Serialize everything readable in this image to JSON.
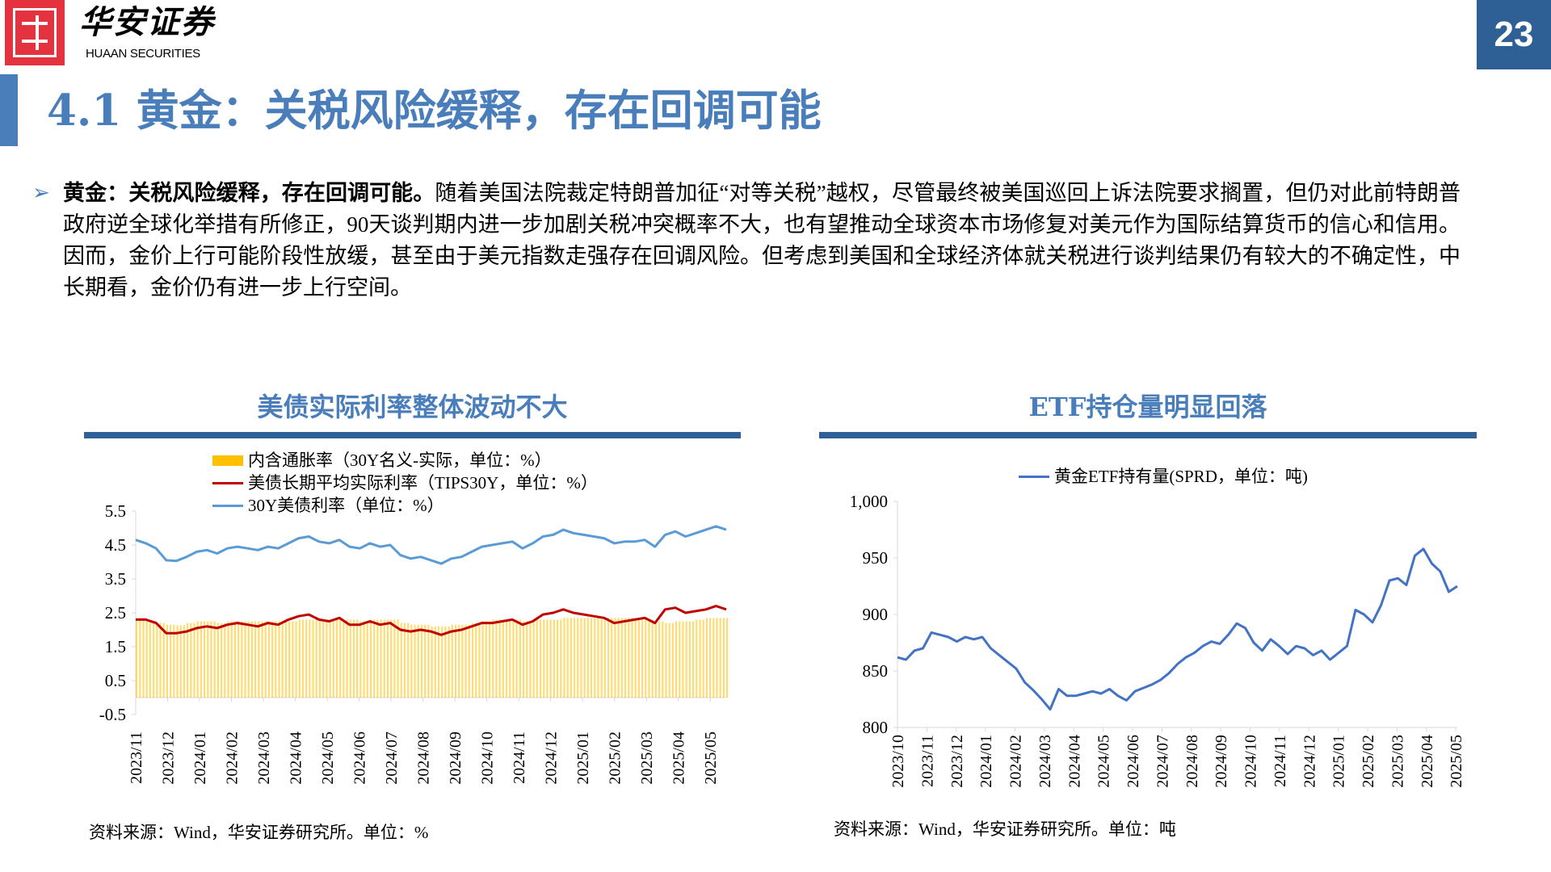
{
  "header": {
    "logo_cn": "华安证券",
    "logo_en": "HUAAN SECURITIES",
    "page_number": "23"
  },
  "title": "4.1 黄金：关税风险缓释，存在回调可能",
  "body": {
    "lead": "黄金：关税风险缓释，存在回调可能。",
    "text": "随着美国法院裁定特朗普加征“对等关税”越权，尽管最终被美国巡回上诉法院要求搁置，但仍对此前特朗普政府逆全球化举措有所修正，90天谈判期内进一步加剧关税冲突概率不大，也有望推动全球资本市场修复对美元作为国际结算货币的信心和信用。因而，金价上行可能阶段性放缓，甚至由于美元指数走强存在回调风险。但考虑到美国和全球经济体就关税进行谈判结果仍有较大的不确定性，中长期看，金价仍有进一步上行空间。"
  },
  "colors": {
    "accent": "#4a7ebb",
    "bar": "#2f6098",
    "breakeven": "#ffc000",
    "tips": "#c00000",
    "yield": "#5b9bd5",
    "etf": "#4472c4"
  },
  "chart_data": [
    {
      "type": "line",
      "title": "美债实际利率整体波动不大",
      "source": "资料来源：Wind，华安证券研究所。单位：%",
      "ylim": [
        -0.5,
        5.5
      ],
      "yticks": [
        "5.5",
        "4.5",
        "3.5",
        "2.5",
        "1.5",
        "0.5",
        "-0.5"
      ],
      "ytick_values": [
        5.5,
        4.5,
        3.5,
        2.5,
        1.5,
        0.5,
        -0.5
      ],
      "xticks": [
        "2023/11",
        "2023/12",
        "2024/01",
        "2024/02",
        "2024/03",
        "2024/04",
        "2024/05",
        "2024/06",
        "2024/07",
        "2024/08",
        "2024/09",
        "2024/10",
        "2024/11",
        "2024/12",
        "2025/01",
        "2025/02",
        "2025/03",
        "2025/04",
        "2025/05"
      ],
      "series": [
        {
          "name": "内含通胀率（30Y名义-实际，单位：%）",
          "kind": "bar",
          "values": [
            2.35,
            2.25,
            2.2,
            2.15,
            2.13,
            2.2,
            2.25,
            2.25,
            2.2,
            2.25,
            2.25,
            2.25,
            2.25,
            2.25,
            2.25,
            2.25,
            2.3,
            2.3,
            2.3,
            2.3,
            2.3,
            2.3,
            2.25,
            2.3,
            2.3,
            2.3,
            2.2,
            2.15,
            2.15,
            2.1,
            2.1,
            2.15,
            2.15,
            2.2,
            2.25,
            2.3,
            2.3,
            2.3,
            2.25,
            2.3,
            2.3,
            2.3,
            2.35,
            2.35,
            2.35,
            2.35,
            2.35,
            2.35,
            2.35,
            2.3,
            2.3,
            2.25,
            2.2,
            2.25,
            2.25,
            2.3,
            2.35,
            2.35,
            2.35
          ]
        },
        {
          "name": "美债长期平均实际利率（TIPS30Y，单位：%）",
          "kind": "line",
          "values": [
            2.3,
            2.3,
            2.2,
            1.9,
            1.9,
            1.95,
            2.05,
            2.1,
            2.05,
            2.15,
            2.2,
            2.15,
            2.1,
            2.2,
            2.15,
            2.3,
            2.4,
            2.45,
            2.3,
            2.25,
            2.35,
            2.15,
            2.15,
            2.25,
            2.15,
            2.2,
            2.0,
            1.95,
            2.0,
            1.95,
            1.85,
            1.95,
            2.0,
            2.1,
            2.2,
            2.2,
            2.25,
            2.3,
            2.15,
            2.25,
            2.45,
            2.5,
            2.6,
            2.5,
            2.45,
            2.4,
            2.35,
            2.2,
            2.25,
            2.3,
            2.35,
            2.2,
            2.6,
            2.65,
            2.5,
            2.55,
            2.6,
            2.7,
            2.6
          ]
        },
        {
          "name": "30Y美债利率（单位：%）",
          "kind": "line",
          "values": [
            4.65,
            4.55,
            4.4,
            4.05,
            4.03,
            4.15,
            4.3,
            4.35,
            4.25,
            4.4,
            4.45,
            4.4,
            4.35,
            4.45,
            4.4,
            4.55,
            4.7,
            4.75,
            4.6,
            4.55,
            4.65,
            4.45,
            4.4,
            4.55,
            4.45,
            4.5,
            4.2,
            4.1,
            4.15,
            4.05,
            3.95,
            4.1,
            4.15,
            4.3,
            4.45,
            4.5,
            4.55,
            4.6,
            4.4,
            4.55,
            4.75,
            4.8,
            4.95,
            4.85,
            4.8,
            4.75,
            4.7,
            4.55,
            4.6,
            4.6,
            4.65,
            4.45,
            4.8,
            4.9,
            4.75,
            4.85,
            4.95,
            5.05,
            4.95
          ]
        }
      ]
    },
    {
      "type": "line",
      "title": "ETF持仓量明显回落",
      "source": "资料来源：Wind，华安证券研究所。单位：吨",
      "ylim": [
        800,
        1000
      ],
      "yticks": [
        "1,000",
        "950",
        "900",
        "850",
        "800"
      ],
      "ytick_values": [
        1000,
        950,
        900,
        850,
        800
      ],
      "xticks": [
        "2023/10",
        "2023/11",
        "2023/12",
        "2024/01",
        "2024/02",
        "2024/03",
        "2024/04",
        "2024/05",
        "2024/06",
        "2024/07",
        "2024/08",
        "2024/09",
        "2024/10",
        "2024/11",
        "2024/12",
        "2025/01",
        "2025/02",
        "2025/03",
        "2025/04",
        "2025/05"
      ],
      "series": [
        {
          "name": "黄金ETF持有量(SPRD，单位：吨)",
          "kind": "line",
          "values": [
            862,
            860,
            868,
            870,
            884,
            882,
            880,
            876,
            880,
            878,
            880,
            870,
            864,
            858,
            852,
            840,
            833,
            825,
            816,
            834,
            828,
            828,
            830,
            832,
            830,
            834,
            828,
            824,
            832,
            835,
            838,
            842,
            848,
            856,
            862,
            866,
            872,
            876,
            874,
            882,
            892,
            888,
            875,
            868,
            878,
            872,
            865,
            872,
            870,
            864,
            868,
            860,
            866,
            872,
            904,
            900,
            893,
            908,
            930,
            932,
            926,
            952,
            958,
            945,
            938,
            920,
            925
          ]
        }
      ]
    }
  ]
}
